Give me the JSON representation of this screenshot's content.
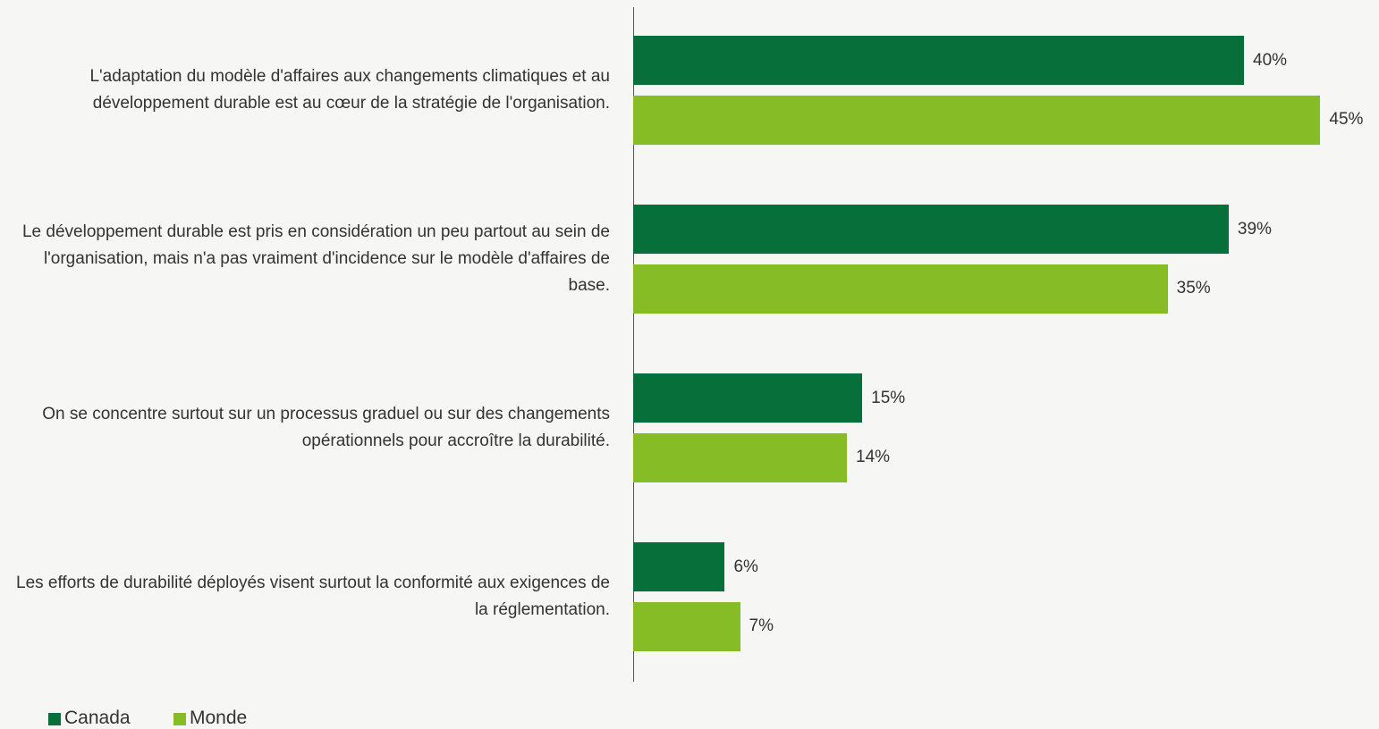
{
  "chart_data": {
    "type": "bar",
    "orientation": "horizontal",
    "categories": [
      "L'adaptation du modèle d'affaires aux changements climatiques et au développement durable est au cœur de la stratégie de l'organisation.",
      "Le développement durable est pris en considération un peu partout au sein de l'organisation, mais n'a pas vraiment d'incidence sur le modèle d'affaires de base.",
      "On se concentre surtout sur un processus graduel ou sur des changements opérationnels pour accroître la durabilité.",
      "Les efforts de durabilité déployés visent surtout la conformité aux exigences de la réglementation."
    ],
    "series": [
      {
        "name": "Canada",
        "color": "#066f3a",
        "values": [
          40,
          39,
          15,
          6
        ],
        "value_labels": [
          "40%",
          "39%",
          "15%",
          "6%"
        ]
      },
      {
        "name": "Monde",
        "color": "#86bc25",
        "values": [
          45,
          35,
          14,
          7
        ],
        "value_labels": [
          "45%",
          "35%",
          "14%",
          "7%"
        ]
      }
    ],
    "legend": "bottom-left"
  }
}
